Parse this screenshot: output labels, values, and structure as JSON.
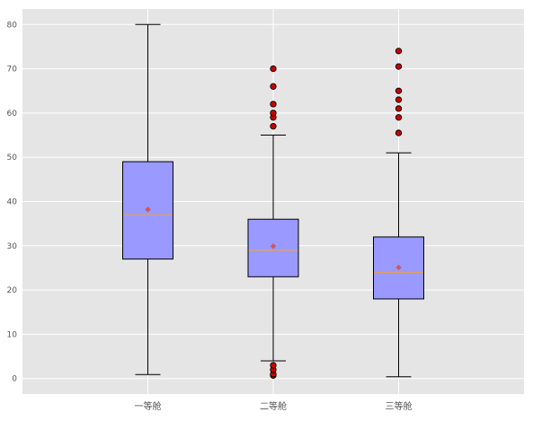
{
  "chart_data": {
    "type": "box",
    "title": "",
    "xlabel": "",
    "ylabel": "",
    "categories": [
      "一等舱",
      "二等舱",
      "三等舱"
    ],
    "ylim": [
      -3.5,
      83.5
    ],
    "yticks": [
      0,
      10,
      20,
      30,
      40,
      50,
      60,
      70,
      80
    ],
    "grid": true,
    "colors": {
      "background": "#e5e5e5",
      "grid": "#ffffff",
      "box_fill": "#9999ff",
      "box_edge": "#000000",
      "median": "#e0a060",
      "mean_marker": "#e24a33",
      "outlier_fill": "#cc0000"
    },
    "boxes": [
      {
        "name": "一等舱",
        "whisker_low": 0.9,
        "q1": 27,
        "median": 37,
        "q3": 49,
        "whisker_high": 80,
        "mean": 38.2,
        "outliers": []
      },
      {
        "name": "二等舱",
        "whisker_low": 4,
        "q1": 23,
        "median": 29,
        "q3": 36,
        "whisker_high": 55,
        "mean": 29.9,
        "outliers": [
          0.7,
          1,
          2,
          3,
          57,
          59,
          60,
          62,
          66,
          70
        ]
      },
      {
        "name": "三等舱",
        "whisker_low": 0.4,
        "q1": 18,
        "median": 24,
        "q3": 32,
        "whisker_high": 51,
        "mean": 25.1,
        "outliers": [
          55.5,
          59,
          61,
          63,
          65,
          70.5,
          74
        ]
      }
    ]
  }
}
